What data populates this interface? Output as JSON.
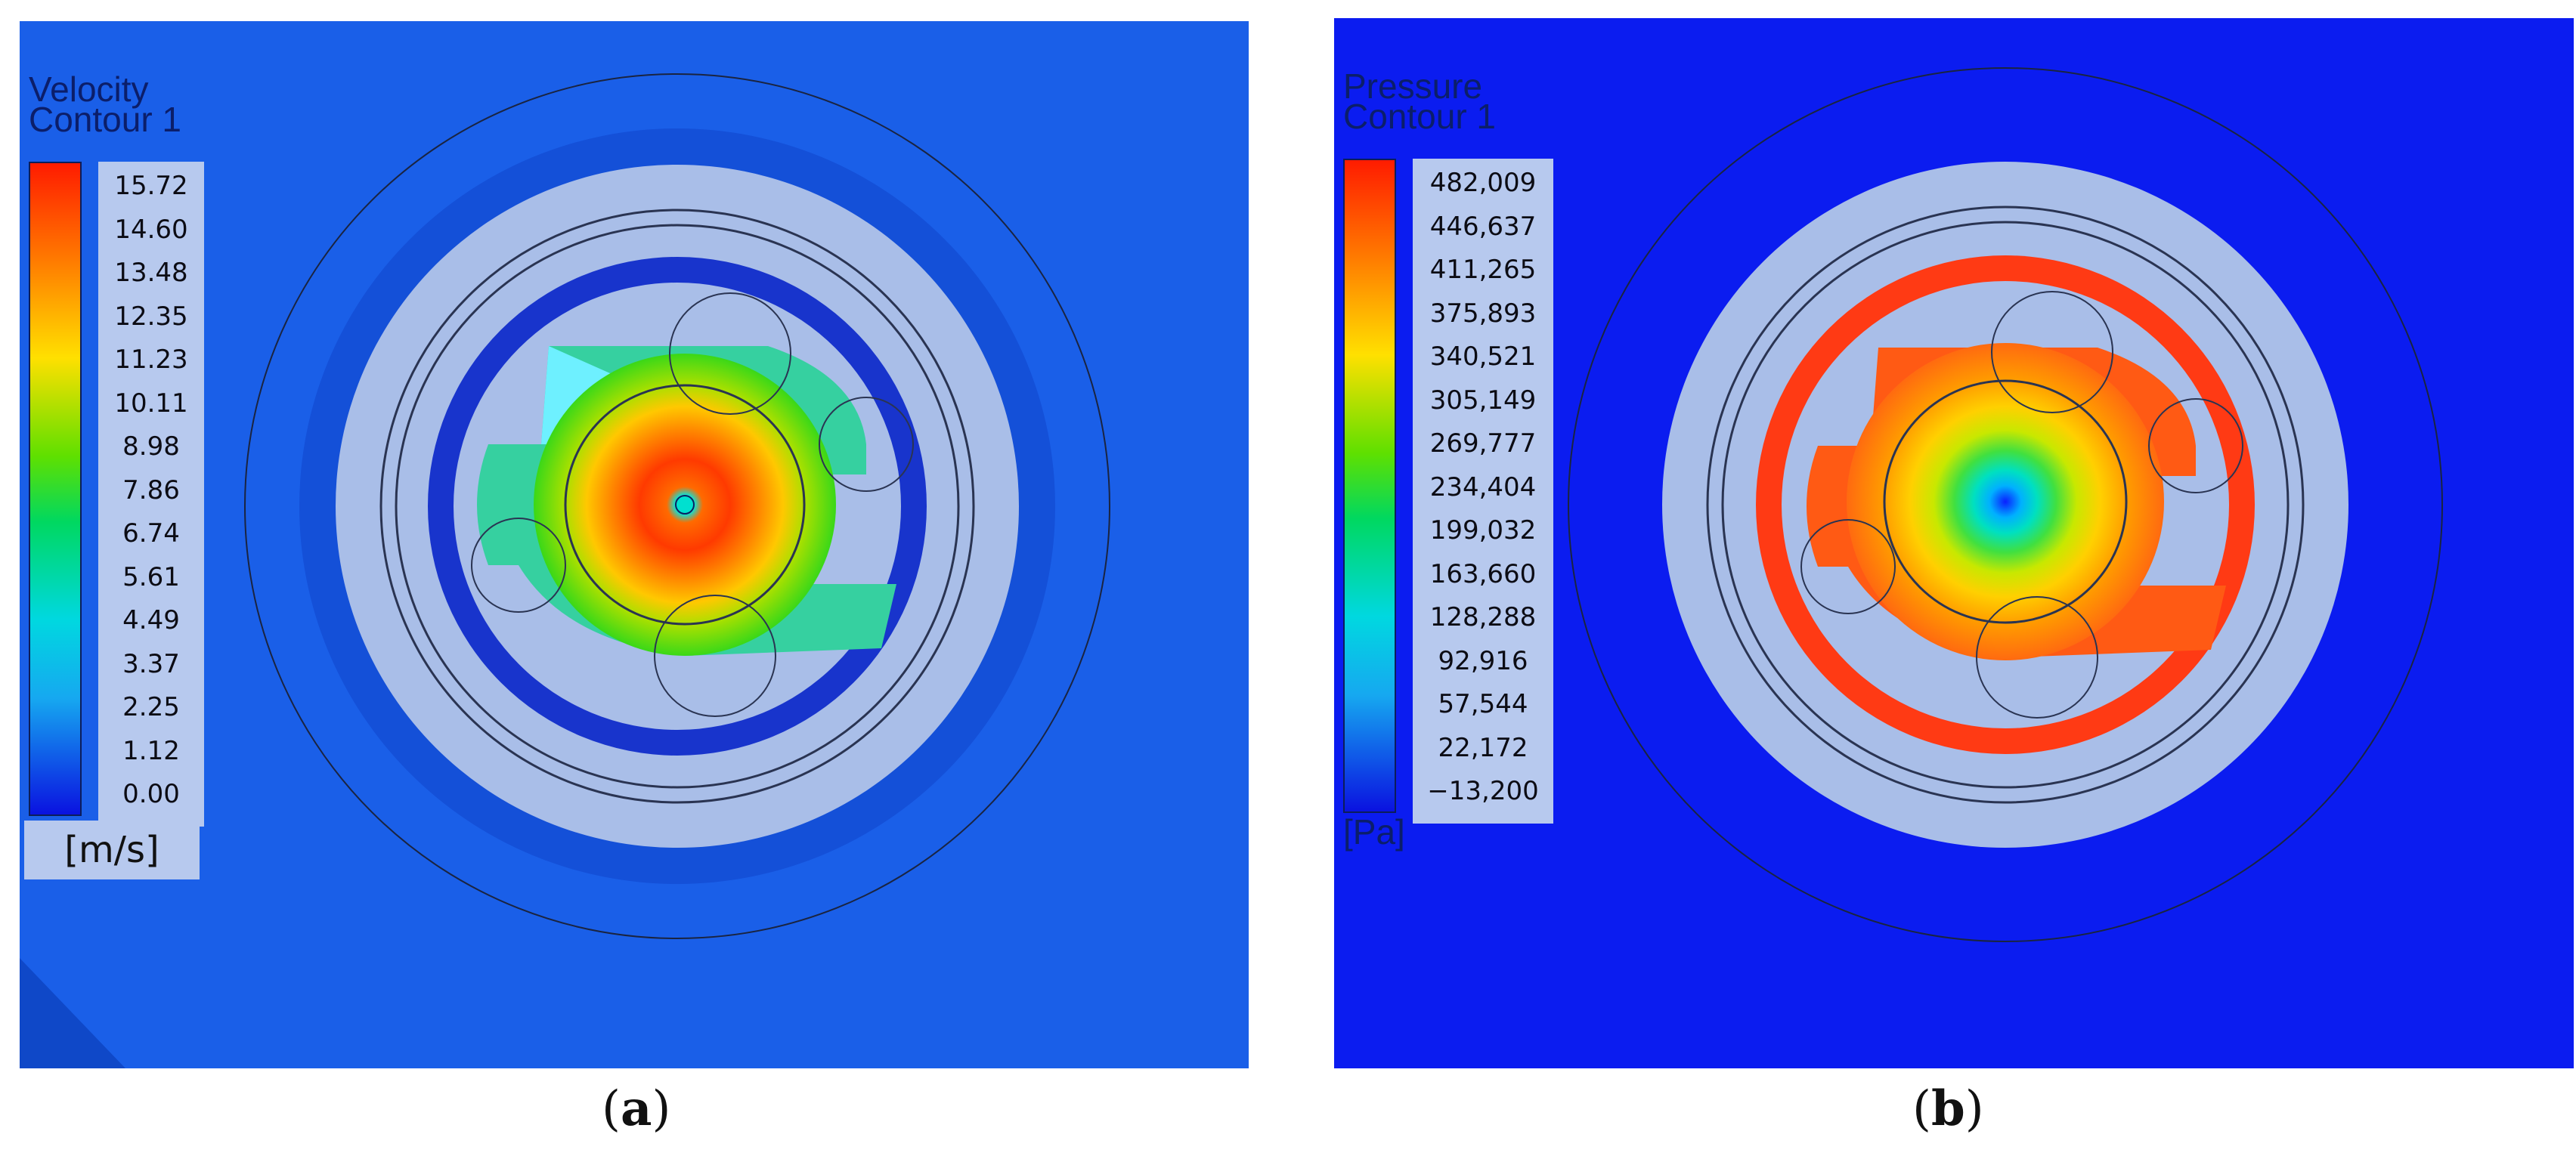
{
  "panels": {
    "a": {
      "legend_title_1": "Velocity",
      "legend_title_2": "Contour 1",
      "unit": "[m/s]",
      "ticks": [
        "15.72",
        "14.60",
        "13.48",
        "12.35",
        "11.23",
        "10.11",
        "8.98",
        "7.86",
        "6.74",
        "5.61",
        "4.49",
        "3.37",
        "2.25",
        "1.12",
        "0.00"
      ],
      "caption_letter": "a"
    },
    "b": {
      "legend_title_1": "Pressure",
      "legend_title_2": "Contour 1",
      "unit": "[Pa]",
      "ticks": [
        "482,009",
        "446,637",
        "411,265",
        "375,893",
        "340,521",
        "305,149",
        "269,777",
        "234,404",
        "199,032",
        "163,660",
        "128,288",
        "92,916",
        "57,544",
        "22,172",
        "−13,200"
      ],
      "caption_letter": "b"
    }
  },
  "colors": {
    "velocity_background": "#1a5fe8",
    "pressure_background": "#0b1cf0",
    "solid_part": "#a9bee8",
    "max": "#ff1a00",
    "min": "#0a10e0"
  }
}
